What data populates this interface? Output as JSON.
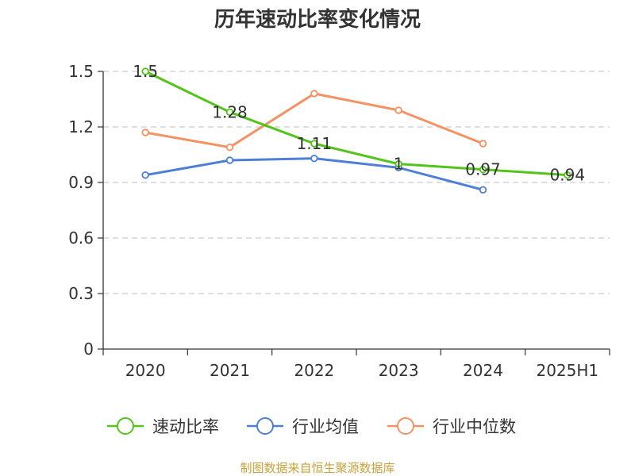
{
  "chart_data": {
    "type": "line",
    "title": "历年速动比率变化情况",
    "categories": [
      "2020",
      "2021",
      "2022",
      "2023",
      "2024",
      "2025H1"
    ],
    "ylim": [
      0,
      1.5
    ],
    "yticks": [
      "0",
      "0.3",
      "0.6",
      "0.9",
      "1.2",
      "1.5"
    ],
    "grid": true,
    "legend_position": "bottom",
    "series": [
      {
        "name": "速动比率",
        "color": "#52c41a",
        "values": [
          1.5,
          1.28,
          1.11,
          1.0,
          0.97,
          0.94
        ],
        "labels": [
          "1.5",
          "1.28",
          "1.11",
          "1",
          "0.97",
          "0.94"
        ]
      },
      {
        "name": "行业均值",
        "color": "#4e7fd6",
        "values": [
          0.94,
          1.02,
          1.03,
          0.98,
          0.86,
          null
        ]
      },
      {
        "name": "行业中位数",
        "color": "#f59263",
        "values": [
          1.17,
          1.09,
          1.38,
          1.29,
          1.11,
          null
        ]
      }
    ],
    "source": "制图数据来自恒生聚源数据库"
  }
}
